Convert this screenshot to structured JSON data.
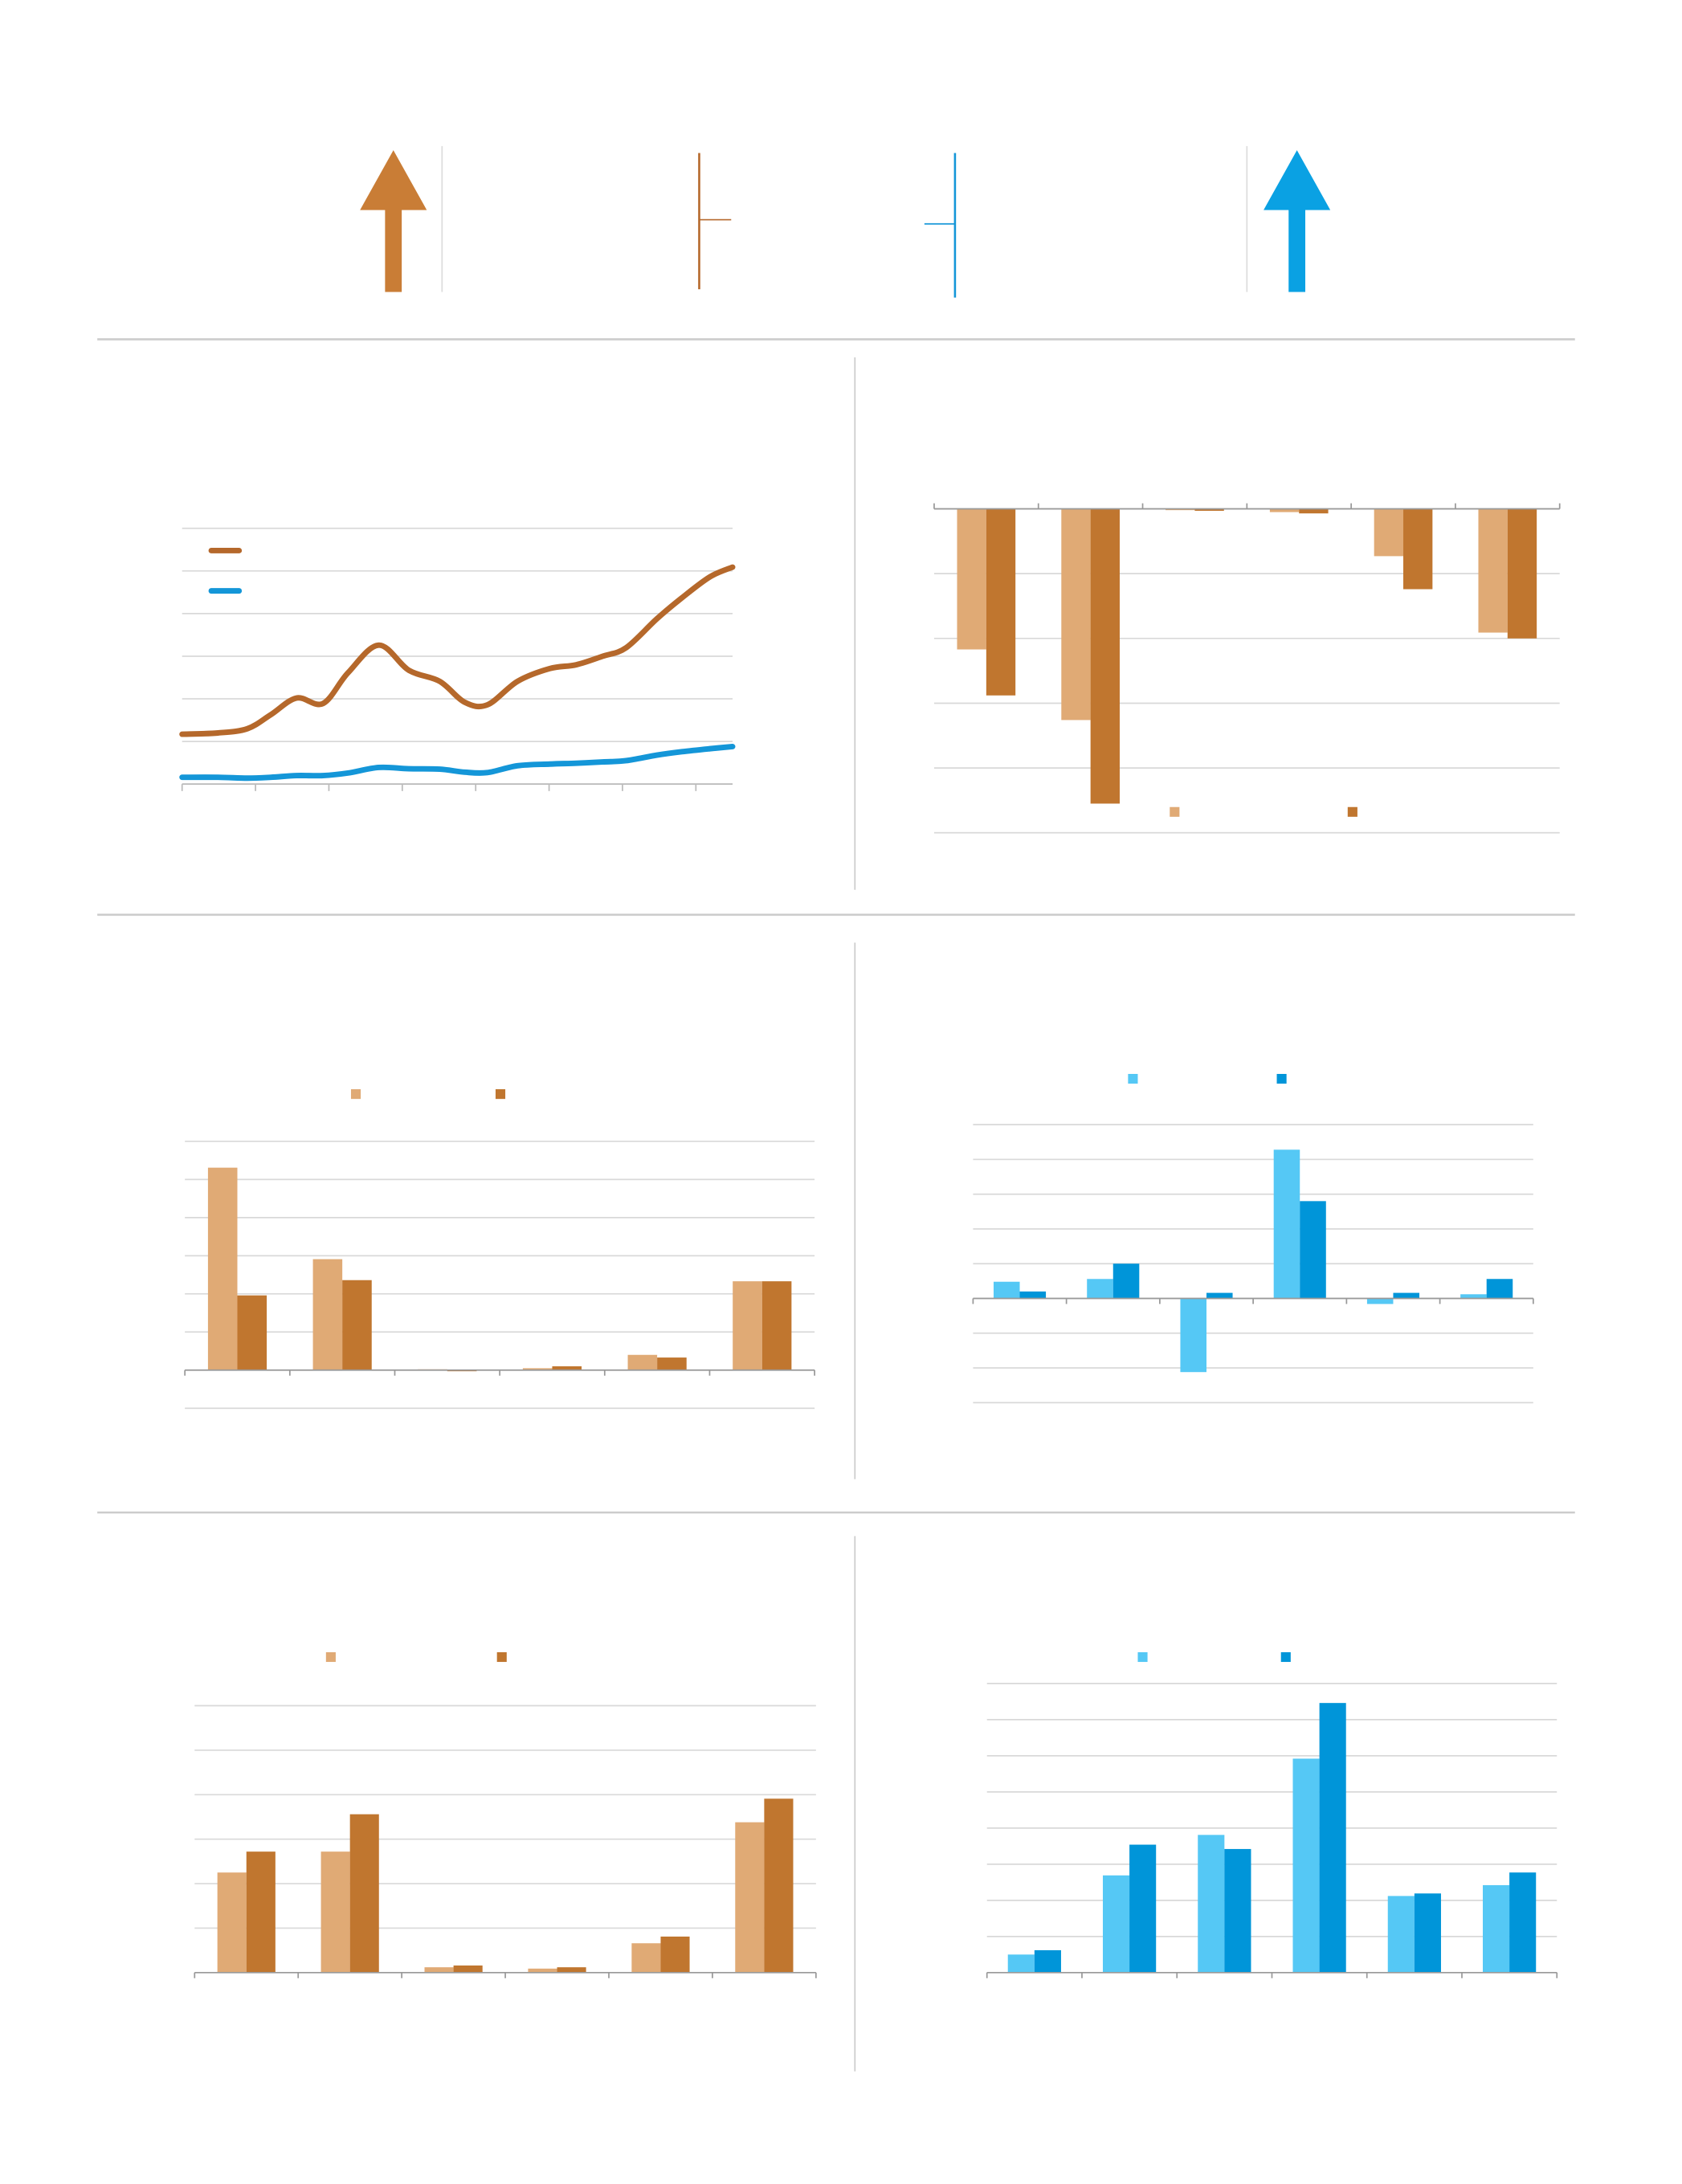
{
  "chart_data": [
    {
      "type": "line",
      "x": [
        0,
        0.49,
        0.89,
        1.21,
        1.56,
        1.92,
        2.26,
        2.68,
        3.09,
        3.51,
        3.85,
        4.16,
        4.57,
        5.01,
        5.37,
        5.73,
        6.05,
        6.47,
        6.81,
        7.19,
        7.5
      ],
      "series": [
        {
          "color": "#b5682b",
          "values": [
            1.17,
            1.2,
            1.3,
            1.63,
            2.02,
            1.89,
            2.61,
            3.26,
            2.67,
            2.41,
            1.92,
            1.86,
            2.41,
            2.71,
            2.8,
            3.0,
            3.2,
            3.88,
            4.37,
            4.86,
            5.09
          ]
        },
        {
          "color": "#1496d8",
          "values": [
            0.16,
            0.16,
            0.14,
            0.16,
            0.2,
            0.2,
            0.26,
            0.39,
            0.36,
            0.35,
            0.28,
            0.27,
            0.43,
            0.47,
            0.49,
            0.52,
            0.55,
            0.68,
            0.76,
            0.83,
            0.88
          ]
        }
      ],
      "xlim": [
        0,
        7.5
      ],
      "xticks": [
        0,
        1,
        2,
        3,
        4,
        5,
        6,
        7
      ],
      "ylim": [
        0,
        6
      ],
      "yticks": [
        0,
        1,
        2,
        3,
        4,
        5,
        6
      ],
      "grid": true
    },
    {
      "type": "bar",
      "categories": [
        null,
        null,
        null,
        null,
        null,
        null
      ],
      "series": [
        {
          "color": "#e0aa75",
          "values": [
            -2.17,
            -3.26,
            -0.02,
            -0.05,
            -0.73,
            -1.91
          ]
        },
        {
          "color": "#c0762f",
          "values": [
            -2.88,
            -4.55,
            -0.03,
            -0.07,
            -1.24,
            -2.0
          ]
        }
      ],
      "ylim": [
        -5,
        0
      ],
      "yticks": [
        -5,
        -4,
        -3,
        -2,
        -1,
        0
      ],
      "grid": true
    },
    {
      "type": "bar",
      "categories": [
        null,
        null,
        null,
        null,
        null,
        null
      ],
      "series": [
        {
          "color": "#e0aa75",
          "values": [
            5.31,
            2.91,
            0.02,
            0.05,
            0.4,
            2.33
          ]
        },
        {
          "color": "#c0762f",
          "values": [
            1.96,
            2.36,
            -0.03,
            0.1,
            0.33,
            2.33
          ]
        }
      ],
      "ylim": [
        -1,
        6
      ],
      "yticks": [
        -1,
        0,
        1,
        2,
        3,
        4,
        5,
        6
      ],
      "grid": true
    },
    {
      "type": "bar",
      "categories": [
        null,
        null,
        null,
        null,
        null,
        null
      ],
      "series": [
        {
          "color": "#55c8f5",
          "values": [
            0.48,
            0.56,
            -2.12,
            4.28,
            -0.16,
            0.12
          ]
        },
        {
          "color": "#0095d9",
          "values": [
            0.2,
            1.0,
            0.16,
            2.8,
            0.16,
            0.56
          ]
        }
      ],
      "ylim": [
        -3,
        5
      ],
      "yticks": [
        -3,
        -2,
        -1,
        0,
        1,
        2,
        3,
        4,
        5
      ],
      "grid": true
    },
    {
      "type": "bar",
      "categories": [
        null,
        null,
        null,
        null,
        null,
        null
      ],
      "series": [
        {
          "color": "#e0aa75",
          "values": [
            2.25,
            2.72,
            0.12,
            0.09,
            0.66,
            3.38
          ]
        },
        {
          "color": "#c0762f",
          "values": [
            2.72,
            3.56,
            0.16,
            0.12,
            0.81,
            3.91
          ]
        }
      ],
      "ylim": [
        0,
        6
      ],
      "yticks": [
        0,
        1,
        2,
        3,
        4,
        5,
        6
      ],
      "grid": true
    },
    {
      "type": "bar",
      "categories": [
        null,
        null,
        null,
        null,
        null,
        null
      ],
      "series": [
        {
          "color": "#55c8f5",
          "values": [
            0.5,
            2.69,
            3.81,
            5.92,
            2.12,
            2.42
          ]
        },
        {
          "color": "#0095d9",
          "values": [
            0.62,
            3.54,
            3.42,
            7.46,
            2.19,
            2.77
          ]
        }
      ],
      "ylim": [
        0,
        8
      ],
      "yticks": [
        0,
        1,
        2,
        3,
        4,
        5,
        6,
        7,
        8
      ],
      "grid": true
    }
  ]
}
